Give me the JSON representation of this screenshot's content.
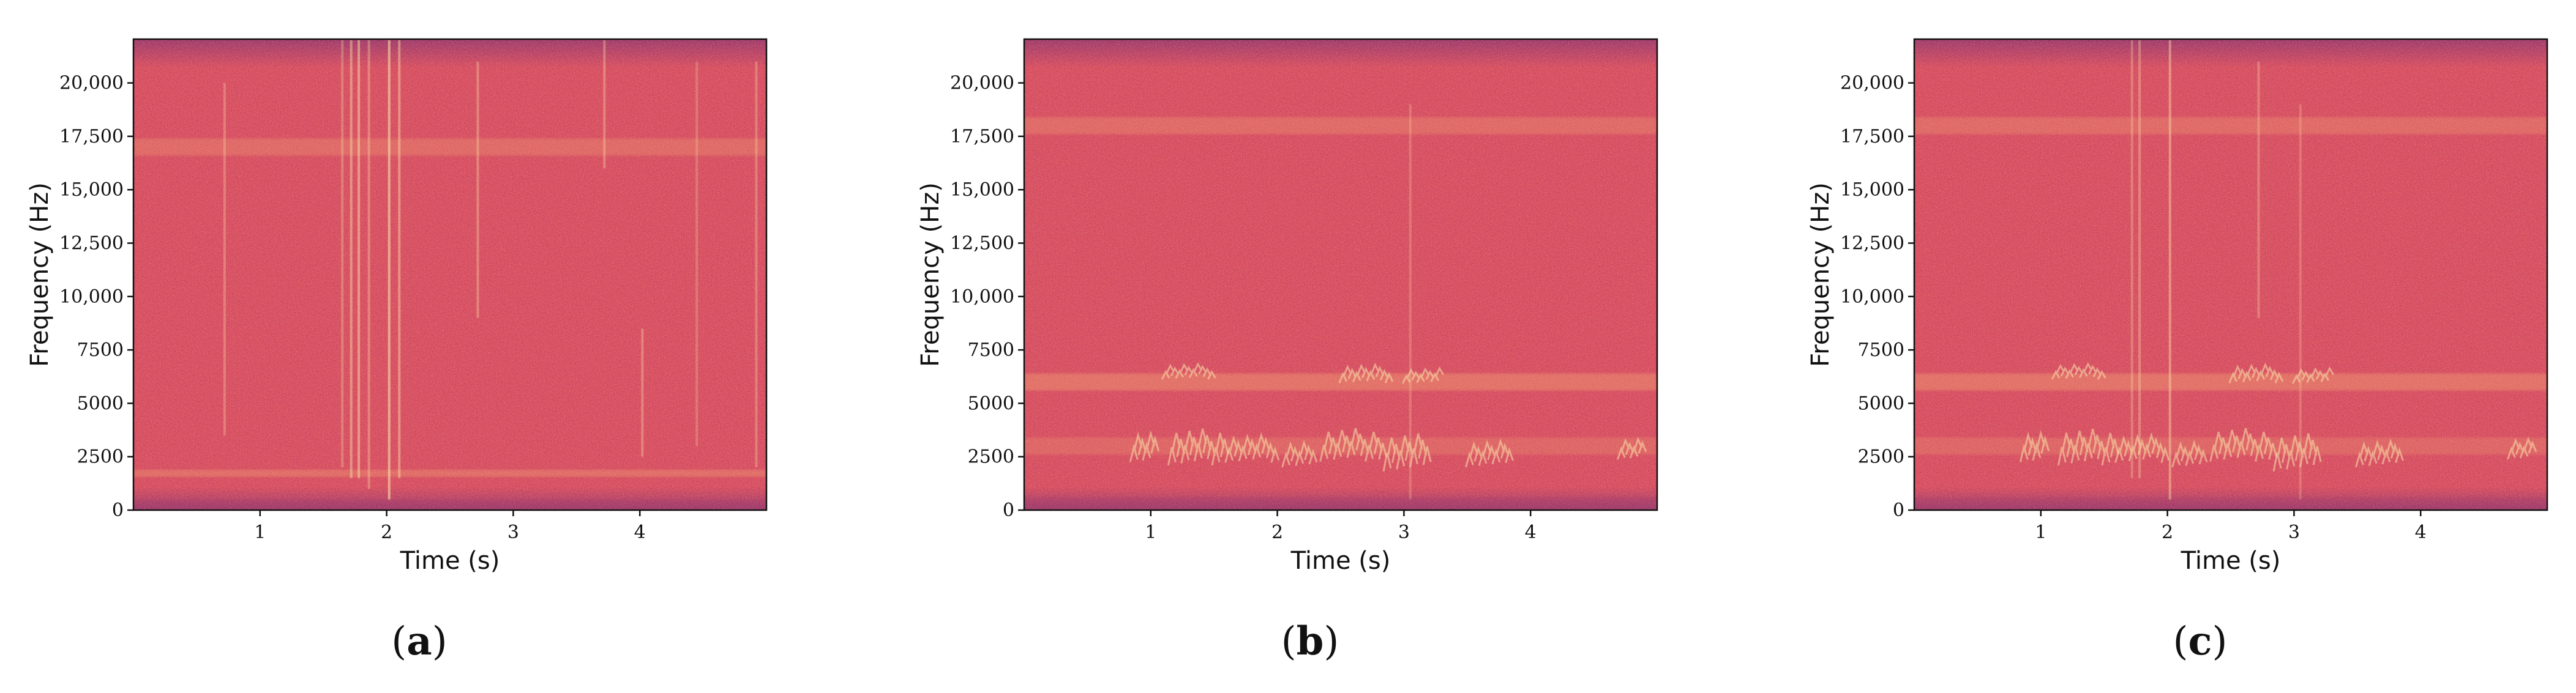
{
  "chart_data": [
    {
      "type": "heatmap",
      "caption": "a",
      "xlabel": "Time (s)",
      "ylabel": "Frequency (Hz)",
      "xlim": [
        0,
        5
      ],
      "ylim": [
        0,
        22050
      ],
      "xticks": [
        1,
        2,
        3,
        4
      ],
      "yticks": [
        0,
        2500,
        5000,
        7500,
        10000,
        12500,
        15000,
        17500,
        20000
      ],
      "ytick_labels": [
        "0",
        "2500",
        "5000",
        "7500",
        "10,000",
        "12,500",
        "15,000",
        "17,500",
        "20,000"
      ],
      "grid": false,
      "bands_hz": [
        {
          "from": 1550,
          "to": 1900,
          "strength": 0.35
        },
        {
          "from": 16600,
          "to": 17400,
          "strength": 0.3
        },
        {
          "from": 0,
          "to": 500,
          "strength": -0.25
        }
      ],
      "transients_s": [
        {
          "t": 0.72,
          "from": 3500,
          "to": 20000,
          "strength": 0.3
        },
        {
          "t": 1.65,
          "from": 2000,
          "to": 22000,
          "strength": 0.3
        },
        {
          "t": 1.72,
          "from": 1500,
          "to": 22000,
          "strength": 0.45
        },
        {
          "t": 1.78,
          "from": 1500,
          "to": 22000,
          "strength": 0.5
        },
        {
          "t": 1.86,
          "from": 1000,
          "to": 22000,
          "strength": 0.35
        },
        {
          "t": 2.02,
          "from": 500,
          "to": 22000,
          "strength": 0.6
        },
        {
          "t": 2.1,
          "from": 1500,
          "to": 22000,
          "strength": 0.45
        },
        {
          "t": 2.72,
          "from": 9000,
          "to": 21000,
          "strength": 0.35
        },
        {
          "t": 3.72,
          "from": 16000,
          "to": 22000,
          "strength": 0.35
        },
        {
          "t": 4.02,
          "from": 2500,
          "to": 8500,
          "strength": 0.35
        },
        {
          "t": 4.45,
          "from": 3000,
          "to": 21000,
          "strength": 0.25
        },
        {
          "t": 4.92,
          "from": 2000,
          "to": 21000,
          "strength": 0.3
        }
      ],
      "calls": []
    },
    {
      "type": "heatmap",
      "caption": "b",
      "xlabel": "Time (s)",
      "ylabel": "Frequency (Hz)",
      "xlim": [
        0,
        5
      ],
      "ylim": [
        0,
        22050
      ],
      "xticks": [
        1,
        2,
        3,
        4
      ],
      "yticks": [
        0,
        2500,
        5000,
        7500,
        10000,
        12500,
        15000,
        17500,
        20000
      ],
      "ytick_labels": [
        "0",
        "2500",
        "5000",
        "7500",
        "10,000",
        "12,500",
        "15,000",
        "17,500",
        "20,000"
      ],
      "grid": false,
      "bands_hz": [
        {
          "from": 5600,
          "to": 6400,
          "strength": 0.4
        },
        {
          "from": 17600,
          "to": 18400,
          "strength": 0.3
        },
        {
          "from": 2600,
          "to": 3400,
          "strength": 0.25
        },
        {
          "from": 0,
          "to": 600,
          "strength": -0.25
        }
      ],
      "transients_s": [
        {
          "t": 3.05,
          "from": 500,
          "to": 19000,
          "strength": 0.25
        }
      ],
      "calls": [
        {
          "t0": 0.85,
          "t1": 1.05,
          "f0": 2000,
          "f1": 4000
        },
        {
          "t0": 1.15,
          "t1": 1.6,
          "f0": 1800,
          "f1": 4200
        },
        {
          "t0": 1.6,
          "t1": 2.0,
          "f0": 2000,
          "f1": 3800
        },
        {
          "t0": 2.05,
          "t1": 2.3,
          "f0": 1800,
          "f1": 3500
        },
        {
          "t0": 2.35,
          "t1": 2.85,
          "f0": 2000,
          "f1": 4200
        },
        {
          "t0": 2.85,
          "t1": 3.2,
          "f0": 1500,
          "f1": 4000
        },
        {
          "t0": 3.5,
          "t1": 3.85,
          "f0": 1800,
          "f1": 3500
        },
        {
          "t0": 4.7,
          "t1": 4.9,
          "f0": 2200,
          "f1": 3600
        },
        {
          "t0": 1.1,
          "t1": 1.5,
          "f0": 6000,
          "f1": 7000
        },
        {
          "t0": 2.5,
          "t1": 2.9,
          "f0": 5800,
          "f1": 7000
        },
        {
          "t0": 3.0,
          "t1": 3.3,
          "f0": 5800,
          "f1": 6800
        }
      ]
    },
    {
      "type": "heatmap",
      "caption": "c",
      "xlabel": "Time (s)",
      "ylabel": "Frequency (Hz)",
      "xlim": [
        0,
        5
      ],
      "ylim": [
        0,
        22050
      ],
      "xticks": [
        1,
        2,
        3,
        4
      ],
      "yticks": [
        0,
        2500,
        5000,
        7500,
        10000,
        12500,
        15000,
        17500,
        20000
      ],
      "ytick_labels": [
        "0",
        "2500",
        "5000",
        "7500",
        "10,000",
        "12,500",
        "15,000",
        "17,500",
        "20,000"
      ],
      "grid": false,
      "bands_hz": [
        {
          "from": 5600,
          "to": 6400,
          "strength": 0.4
        },
        {
          "from": 17600,
          "to": 18400,
          "strength": 0.3
        },
        {
          "from": 2600,
          "to": 3400,
          "strength": 0.25
        },
        {
          "from": 0,
          "to": 600,
          "strength": -0.2
        }
      ],
      "transients_s": [
        {
          "t": 1.72,
          "from": 1500,
          "to": 22000,
          "strength": 0.3
        },
        {
          "t": 1.78,
          "from": 1500,
          "to": 22000,
          "strength": 0.35
        },
        {
          "t": 2.02,
          "from": 500,
          "to": 22000,
          "strength": 0.45
        },
        {
          "t": 2.72,
          "from": 9000,
          "to": 21000,
          "strength": 0.3
        },
        {
          "t": 3.05,
          "from": 500,
          "to": 19000,
          "strength": 0.25
        }
      ],
      "calls": [
        {
          "t0": 0.85,
          "t1": 1.05,
          "f0": 2000,
          "f1": 4000
        },
        {
          "t0": 1.15,
          "t1": 1.6,
          "f0": 1800,
          "f1": 4200
        },
        {
          "t0": 1.6,
          "t1": 2.0,
          "f0": 2000,
          "f1": 3800
        },
        {
          "t0": 2.05,
          "t1": 2.3,
          "f0": 1800,
          "f1": 3500
        },
        {
          "t0": 2.35,
          "t1": 2.85,
          "f0": 2000,
          "f1": 4200
        },
        {
          "t0": 2.85,
          "t1": 3.2,
          "f0": 1500,
          "f1": 4000
        },
        {
          "t0": 3.5,
          "t1": 3.85,
          "f0": 1800,
          "f1": 3500
        },
        {
          "t0": 4.7,
          "t1": 4.9,
          "f0": 2200,
          "f1": 3600
        },
        {
          "t0": 1.1,
          "t1": 1.5,
          "f0": 6000,
          "f1": 7000
        },
        {
          "t0": 2.5,
          "t1": 2.9,
          "f0": 5800,
          "f1": 7000
        },
        {
          "t0": 3.0,
          "t1": 3.3,
          "f0": 5800,
          "f1": 6800
        }
      ]
    }
  ],
  "colors": {
    "colormap": "magma",
    "background_mean": "#d94f62",
    "top_fade": "#9c3a6e",
    "bright": "#f4a574",
    "hot": "#fbe0a8",
    "axes": "#111111"
  }
}
